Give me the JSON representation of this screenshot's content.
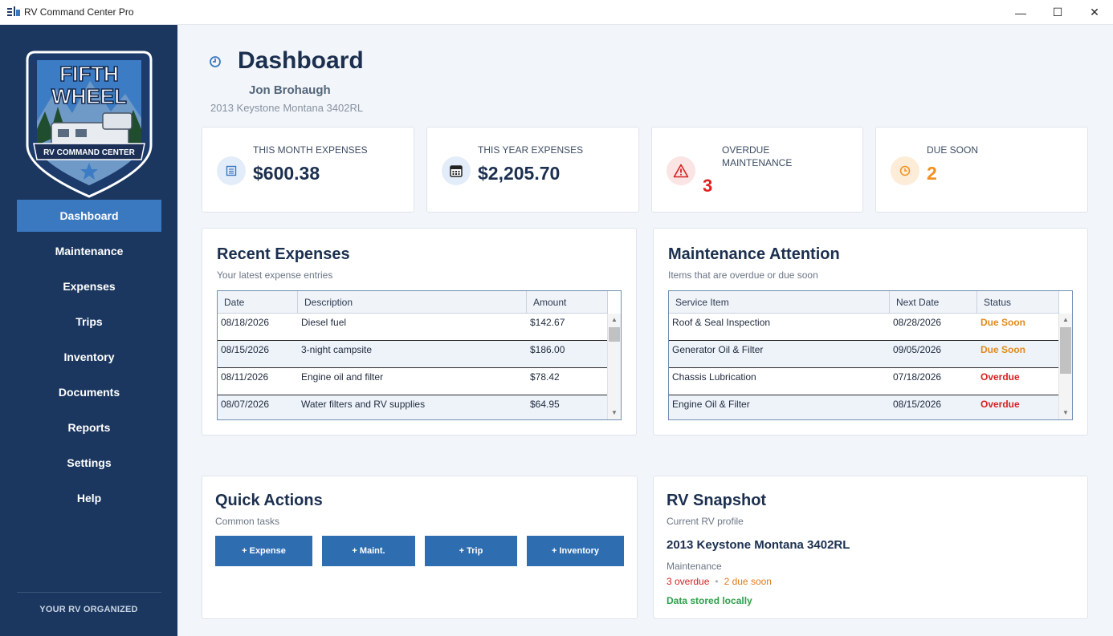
{
  "window": {
    "title": "RV Command Center Pro",
    "controls": {
      "minimize": "—",
      "maximize": "☐",
      "close": "✕"
    }
  },
  "sidebar": {
    "logo_text": {
      "line1": "FIFTH",
      "line2": "WHEEL",
      "banner": "RV COMMAND CENTER"
    },
    "items": [
      {
        "label": "Dashboard",
        "active": true
      },
      {
        "label": "Maintenance"
      },
      {
        "label": "Expenses"
      },
      {
        "label": "Trips"
      },
      {
        "label": "Inventory"
      },
      {
        "label": "Documents"
      },
      {
        "label": "Reports"
      },
      {
        "label": "Settings"
      },
      {
        "label": "Help"
      }
    ],
    "footer": "YOUR RV ORGANIZED"
  },
  "header": {
    "title": "Dashboard",
    "owner": "Jon Brohaugh",
    "rv": "2013 Keystone Montana 3402RL"
  },
  "stats": [
    {
      "label": "THIS MONTH EXPENSES",
      "value": "$600.38",
      "icon": "receipt-icon"
    },
    {
      "label": "THIS YEAR EXPENSES",
      "value": "$2,205.70",
      "icon": "calendar-icon"
    },
    {
      "label_line1": "OVERDUE",
      "label_line2": "MAINTENANCE",
      "value": "3",
      "icon": "warning-icon",
      "color": "#e02020"
    },
    {
      "label": "DUE SOON",
      "value": "2",
      "icon": "clock-icon",
      "color": "#f0901e"
    }
  ],
  "recent_expenses": {
    "title": "Recent Expenses",
    "subtitle": "Your latest expense entries",
    "columns": [
      "Date",
      "Description",
      "Amount"
    ],
    "rows": [
      {
        "date": "08/18/2026",
        "description": "Diesel fuel",
        "amount": "$142.67"
      },
      {
        "date": "08/15/2026",
        "description": "3-night campsite",
        "amount": "$186.00"
      },
      {
        "date": "08/11/2026",
        "description": "Engine oil and filter",
        "amount": "$78.42"
      },
      {
        "date": "08/07/2026",
        "description": "Water filters and RV supplies",
        "amount": "$64.95"
      }
    ]
  },
  "maintenance": {
    "title": "Maintenance Attention",
    "subtitle": "Items that are overdue or due soon",
    "columns": [
      "Service Item",
      "Next Date",
      "Status"
    ],
    "rows": [
      {
        "item": "Roof & Seal Inspection",
        "date": "08/28/2026",
        "status": "Due Soon"
      },
      {
        "item": "Generator Oil & Filter",
        "date": "09/05/2026",
        "status": "Due Soon"
      },
      {
        "item": "Chassis Lubrication",
        "date": "07/18/2026",
        "status": "Overdue"
      },
      {
        "item": "Engine Oil & Filter",
        "date": "08/15/2026",
        "status": "Overdue"
      }
    ]
  },
  "quick_actions": {
    "title": "Quick Actions",
    "subtitle": "Common tasks",
    "buttons": [
      "+ Expense",
      "+ Maint.",
      "+ Trip",
      "+ Inventory"
    ]
  },
  "snapshot": {
    "title": "RV Snapshot",
    "subtitle": "Current RV profile",
    "model": "2013 Keystone Montana 3402RL",
    "maintenance_label": "Maintenance",
    "overdue": "3 overdue",
    "separator": "•",
    "due_soon": "2 due soon",
    "storage": "Data stored locally"
  }
}
